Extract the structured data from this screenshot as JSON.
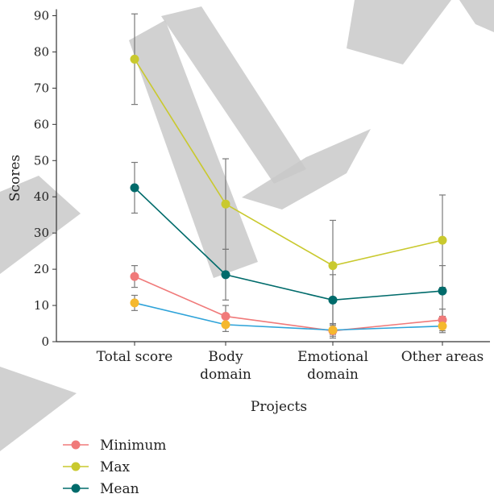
{
  "chart_data": {
    "type": "line",
    "title": "",
    "xlabel": "Projects",
    "ylabel": "Scores",
    "ylim": [
      0,
      90
    ],
    "yticks": [
      0,
      10,
      20,
      30,
      40,
      50,
      60,
      70,
      80,
      90
    ],
    "categories": [
      [
        "Total score"
      ],
      [
        "Body",
        "domain"
      ],
      [
        "Emotional",
        "domain"
      ],
      [
        "Other areas"
      ]
    ],
    "series": [
      {
        "name": "Minimum",
        "color": "#f07a7a",
        "values": [
          18,
          7,
          3,
          6
        ]
      },
      {
        "name": "Max",
        "color": "#c9c92e",
        "values": [
          78,
          38,
          21,
          28
        ],
        "error_low": [
          65.5,
          25.5,
          2,
          15
        ],
        "error_high": [
          90.5,
          50.5,
          33.5,
          40.5
        ]
      },
      {
        "name": "Mean",
        "color": "#006b6b",
        "values": [
          42.5,
          18.5,
          11.5,
          14
        ],
        "error_low": [
          35.5,
          11.5,
          4.5,
          7
        ],
        "error_high": [
          49.5,
          25.5,
          18.5,
          21
        ]
      },
      {
        "name": "",
        "color": "#2ea3d9",
        "marker_color": "#f5b82e",
        "values": [
          10.7,
          4.7,
          3.2,
          4.3
        ],
        "error_low": [
          8.6,
          2.8,
          1.5,
          2.5
        ],
        "error_high": [
          12.8,
          6.6,
          4.9,
          6.1
        ]
      }
    ],
    "minimum_error": {
      "low": [
        15,
        4,
        1,
        3
      ],
      "high": [
        21,
        10,
        5,
        9
      ]
    },
    "legend": {
      "position": "bottom-left"
    },
    "grid": false,
    "watermark": "RETRACTED",
    "watermark_color": "#c9c9c9"
  }
}
